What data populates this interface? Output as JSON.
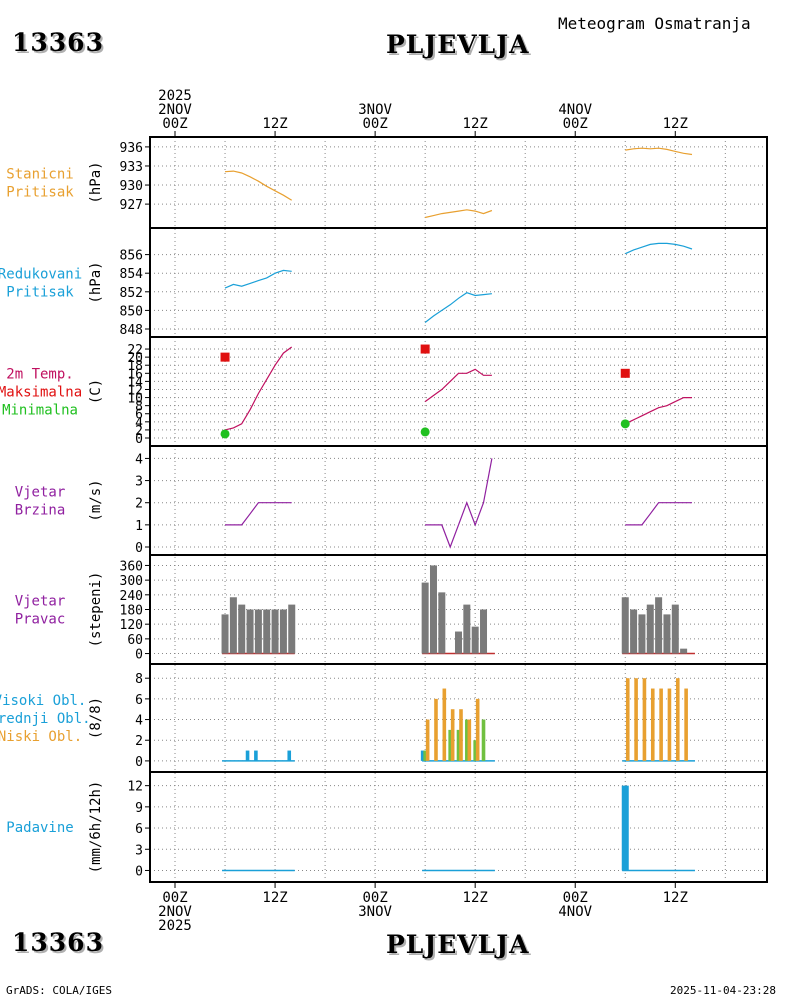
{
  "header": {
    "station_id": "13363",
    "station_name": "PLJEVLJA",
    "title": "Meteogram Osmatranja",
    "footer_left": "GrADS: COLA/IGES",
    "footer_right": "2025-11-04-23:28"
  },
  "time_axis": {
    "top": [
      {
        "hour": 0,
        "lines": [
          "2025",
          "2NOV",
          "00Z"
        ]
      },
      {
        "hour": 12,
        "lines": [
          "12Z"
        ]
      },
      {
        "hour": 24,
        "lines": [
          "3NOV",
          "00Z"
        ]
      },
      {
        "hour": 36,
        "lines": [
          "12Z"
        ]
      },
      {
        "hour": 48,
        "lines": [
          "4NOV",
          "00Z"
        ]
      },
      {
        "hour": 60,
        "lines": [
          "12Z"
        ]
      }
    ],
    "bottom": [
      {
        "hour": 0,
        "lines": [
          "00Z",
          "2NOV",
          "2025"
        ]
      },
      {
        "hour": 12,
        "lines": [
          "12Z"
        ]
      },
      {
        "hour": 24,
        "lines": [
          "00Z",
          "3NOV"
        ]
      },
      {
        "hour": 36,
        "lines": [
          "12Z"
        ]
      },
      {
        "hour": 48,
        "lines": [
          "00Z",
          "4NOV"
        ]
      },
      {
        "hour": 60,
        "lines": [
          "12Z"
        ]
      }
    ],
    "range_hours": [
      -3,
      71
    ]
  },
  "chart_data": [
    {
      "type": "line",
      "id": "station_pressure",
      "label_lines": [
        {
          "text": "Stanicni",
          "color": "#e8a030"
        },
        {
          "text": "Pritisak",
          "color": "#e8a030"
        }
      ],
      "ylabel": "(hPa)",
      "ylim": [
        924.5,
        936.3
      ],
      "yticks": [
        927,
        930,
        933,
        936
      ],
      "series": [
        {
          "name": "Stanicni Pritisak",
          "color": "#e8a030",
          "segments": [
            [
              [
                6,
                932.1
              ],
              [
                7,
                932.2
              ],
              [
                8,
                931.9
              ],
              [
                9,
                931.3
              ],
              [
                10,
                930.6
              ],
              [
                11,
                929.8
              ],
              [
                12,
                929.1
              ],
              [
                13,
                928.4
              ],
              [
                14,
                927.6
              ]
            ],
            [
              [
                30,
                924.9
              ],
              [
                31,
                925.2
              ],
              [
                32,
                925.5
              ],
              [
                33,
                925.7
              ],
              [
                34,
                925.9
              ],
              [
                35,
                926.1
              ],
              [
                36,
                925.9
              ],
              [
                37,
                925.5
              ],
              [
                38,
                926.0
              ]
            ],
            [
              [
                54,
                935.5
              ],
              [
                55,
                935.7
              ],
              [
                56,
                935.8
              ],
              [
                57,
                935.7
              ],
              [
                58,
                935.8
              ],
              [
                59,
                935.6
              ],
              [
                60,
                935.3
              ],
              [
                61,
                935.0
              ],
              [
                62,
                934.8
              ]
            ]
          ]
        }
      ]
    },
    {
      "type": "line",
      "id": "reduced_pressure",
      "label_lines": [
        {
          "text": "Redukovani",
          "color": "#1aa0d8"
        },
        {
          "text": "Pritisak",
          "color": "#1aa0d8"
        }
      ],
      "ylabel": "(hPa)",
      "ylim": [
        848,
        858
      ],
      "yticks": [
        848,
        850,
        852,
        854,
        856
      ],
      "series": [
        {
          "name": "Redukovani Pritisak",
          "color": "#1aa0d8",
          "segments": [
            [
              [
                6,
                852.4
              ],
              [
                7,
                852.8
              ],
              [
                8,
                852.6
              ],
              [
                9,
                852.9
              ],
              [
                10,
                853.2
              ],
              [
                11,
                853.5
              ],
              [
                12,
                854.0
              ],
              [
                13,
                854.3
              ],
              [
                14,
                854.2
              ]
            ],
            [
              [
                30,
                848.7
              ],
              [
                31,
                849.4
              ],
              [
                32,
                850.0
              ],
              [
                33,
                850.6
              ],
              [
                34,
                851.3
              ],
              [
                35,
                851.9
              ],
              [
                36,
                851.6
              ],
              [
                37,
                851.7
              ],
              [
                38,
                851.8
              ]
            ],
            [
              [
                54,
                856.1
              ],
              [
                55,
                856.5
              ],
              [
                56,
                856.8
              ],
              [
                57,
                857.1
              ],
              [
                58,
                857.2
              ],
              [
                59,
                857.2
              ],
              [
                60,
                857.1
              ],
              [
                61,
                856.9
              ],
              [
                62,
                856.6
              ]
            ]
          ]
        }
      ]
    },
    {
      "type": "line",
      "id": "temperature",
      "label_lines": [
        {
          "text": "2m Temp.",
          "color": "#c01060"
        },
        {
          "text": "Maksimalna",
          "color": "#e01010"
        },
        {
          "text": "Minimalna",
          "color": "#20c020"
        }
      ],
      "ylabel": "(C)",
      "ylim": [
        0,
        23
      ],
      "yticks": [
        0,
        2,
        4,
        6,
        8,
        10,
        12,
        14,
        16,
        18,
        20,
        22
      ],
      "series": [
        {
          "name": "2m Temp.",
          "color": "#c01060",
          "segments": [
            [
              [
                6,
                2.0
              ],
              [
                7,
                2.5
              ],
              [
                8,
                3.5
              ],
              [
                9,
                7.0
              ],
              [
                10,
                11.0
              ],
              [
                11,
                14.5
              ],
              [
                12,
                18.0
              ],
              [
                13,
                21.0
              ],
              [
                14,
                22.5
              ]
            ],
            [
              [
                30,
                9.0
              ],
              [
                31,
                10.5
              ],
              [
                32,
                12.0
              ],
              [
                33,
                14.0
              ],
              [
                34,
                16.0
              ],
              [
                35,
                16.0
              ],
              [
                36,
                17.0
              ],
              [
                37,
                15.5
              ],
              [
                38,
                15.5
              ]
            ],
            [
              [
                54,
                3.5
              ],
              [
                55,
                4.5
              ],
              [
                56,
                5.5
              ],
              [
                57,
                6.5
              ],
              [
                58,
                7.5
              ],
              [
                59,
                8.0
              ],
              [
                60,
                9.0
              ],
              [
                61,
                10.0
              ],
              [
                62,
                10.0
              ]
            ]
          ]
        }
      ],
      "markers": [
        {
          "name": "Maksimalna",
          "color": "#e01010",
          "shape": "square",
          "points": [
            [
              6,
              20
            ],
            [
              30,
              22
            ],
            [
              54,
              16
            ]
          ]
        },
        {
          "name": "Minimalna",
          "color": "#20c020",
          "shape": "circle",
          "points": [
            [
              6,
              1
            ],
            [
              30,
              1.5
            ],
            [
              54,
              3.5
            ]
          ]
        }
      ]
    },
    {
      "type": "line",
      "id": "wind_speed",
      "label_lines": [
        {
          "text": "Vjetar",
          "color": "#9020a0"
        },
        {
          "text": "Brzina",
          "color": "#9020a0"
        }
      ],
      "ylabel": "(m/s)",
      "ylim": [
        0,
        4.2
      ],
      "yticks": [
        0,
        1,
        2,
        3,
        4
      ],
      "series": [
        {
          "name": "Vjetar Brzina",
          "color": "#9020a0",
          "segments": [
            [
              [
                6,
                1
              ],
              [
                7,
                1
              ],
              [
                8,
                1
              ],
              [
                9,
                1.5
              ],
              [
                10,
                2
              ],
              [
                11,
                2
              ],
              [
                12,
                2
              ],
              [
                13,
                2
              ],
              [
                14,
                2
              ]
            ],
            [
              [
                30,
                1
              ],
              [
                31,
                1
              ],
              [
                32,
                1
              ],
              [
                33,
                0
              ],
              [
                34,
                1
              ],
              [
                35,
                2
              ],
              [
                36,
                1
              ],
              [
                37,
                2
              ],
              [
                38,
                4
              ]
            ],
            [
              [
                54,
                1
              ],
              [
                55,
                1
              ],
              [
                56,
                1
              ],
              [
                57,
                1.5
              ],
              [
                58,
                2
              ],
              [
                59,
                2
              ],
              [
                60,
                2
              ],
              [
                61,
                2
              ],
              [
                62,
                2
              ]
            ]
          ]
        }
      ]
    },
    {
      "type": "bar",
      "id": "wind_direction",
      "label_lines": [
        {
          "text": "Vjetar",
          "color": "#9020a0"
        },
        {
          "text": "Pravac",
          "color": "#9020a0"
        }
      ],
      "ylabel": "(stepeni)",
      "ylim": [
        -10,
        370
      ],
      "yticks": [
        0,
        60,
        120,
        180,
        240,
        300,
        360
      ],
      "series": [
        {
          "name": "Vjetar Pravac",
          "color": "#7a7a7a",
          "x": [
            6,
            7,
            8,
            9,
            10,
            11,
            12,
            13,
            14,
            30,
            31,
            32,
            33,
            34,
            35,
            36,
            37,
            38,
            54,
            55,
            56,
            57,
            58,
            59,
            60,
            61,
            62
          ],
          "values": [
            160,
            230,
            200,
            180,
            180,
            180,
            180,
            180,
            200,
            290,
            360,
            250,
            0,
            90,
            200,
            110,
            180,
            0,
            230,
            180,
            160,
            200,
            230,
            160,
            200,
            20,
            0
          ]
        }
      ],
      "baseline": {
        "color": "#c03030",
        "segments": [
          [
            6,
            14
          ],
          [
            30,
            38
          ],
          [
            54,
            62
          ]
        ]
      }
    },
    {
      "type": "bar",
      "id": "cloud_cover",
      "label_lines": [
        {
          "text": "Visoki Obl.",
          "color": "#1aa0d8"
        },
        {
          "text": "Srednji Obl.",
          "color": "#1aa0d8"
        },
        {
          "text": "Niski Obl.",
          "color": "#e8a030"
        }
      ],
      "ylabel": "(8/8)",
      "ylim": [
        -0.3,
        8.6
      ],
      "yticks": [
        0,
        2,
        4,
        6,
        8
      ],
      "series": [
        {
          "name": "Visoki Obl.",
          "color": "#1aa0d8",
          "x": [
            6,
            7,
            8,
            9,
            10,
            11,
            12,
            13,
            14,
            30,
            31,
            32,
            33,
            34,
            35,
            36,
            37,
            38,
            54,
            55,
            56,
            57,
            58,
            59,
            60,
            61,
            62
          ],
          "values": [
            0,
            0,
            0,
            1,
            1,
            0,
            0,
            0,
            1,
            1,
            0,
            0,
            0,
            0,
            0,
            0,
            0,
            0,
            0,
            0,
            0,
            0,
            0,
            0,
            0,
            0,
            0
          ]
        },
        {
          "name": "Srednji Obl.",
          "color": "#70c040",
          "x": [
            30,
            31,
            32,
            33,
            34,
            35,
            36,
            37,
            38
          ],
          "values": [
            1,
            0,
            0,
            3,
            3,
            4,
            2,
            4,
            0
          ]
        },
        {
          "name": "Niski Obl.",
          "color": "#e8a030",
          "x": [
            30,
            31,
            32,
            33,
            34,
            35,
            36,
            37,
            38,
            54,
            55,
            56,
            57,
            58,
            59,
            60,
            61,
            62
          ],
          "values": [
            4,
            6,
            7,
            5,
            5,
            4,
            6,
            0,
            0,
            8,
            8,
            8,
            7,
            7,
            7,
            8,
            7,
            0
          ]
        }
      ],
      "baseline": {
        "color": "#1aa0d8",
        "segments": [
          [
            6,
            14
          ],
          [
            30,
            38
          ],
          [
            54,
            62
          ]
        ]
      }
    },
    {
      "type": "bar",
      "id": "precipitation",
      "label_lines": [
        {
          "text": "Padavine",
          "color": "#1aa0d8"
        }
      ],
      "ylabel": "(mm/6h/12h)",
      "ylim": [
        -0.5,
        12.8
      ],
      "yticks": [
        0,
        3,
        6,
        9,
        12
      ],
      "series": [
        {
          "name": "Padavine",
          "color": "#1aa0d8",
          "x": [
            54
          ],
          "values": [
            12
          ]
        }
      ],
      "baseline": {
        "color": "#1aa0d8",
        "segments": [
          [
            6,
            14
          ],
          [
            30,
            38
          ],
          [
            54,
            62
          ]
        ]
      }
    }
  ]
}
